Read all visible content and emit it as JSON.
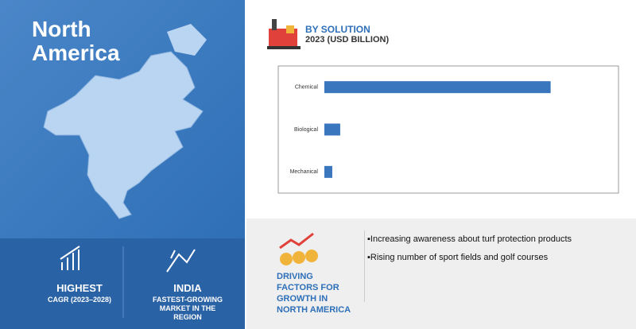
{
  "region_title": "North America",
  "chart_data": {
    "type": "bar",
    "orientation": "horizontal",
    "title": "BY SOLUTION",
    "subtitle": "2023 (USD BILLION)",
    "categories": [
      "Chemical",
      "Biological",
      "Mechanical"
    ],
    "values": [
      10.0,
      0.7,
      0.35
    ],
    "color": "#3a76bd",
    "xlim": [
      0,
      13
    ]
  },
  "highlights": [
    {
      "head": "HIGHEST",
      "sub": "CAGR (2023–2028)"
    },
    {
      "head": "INDIA",
      "sub": "FASTEST-GROWING MARKET IN THE REGION"
    }
  ],
  "driving_factors": {
    "title": "DRIVING FACTORS FOR GROWTH IN NORTH AMERICA",
    "items": [
      "Increasing awareness about turf protection products",
      "Rising number of sport fields and golf courses"
    ]
  }
}
